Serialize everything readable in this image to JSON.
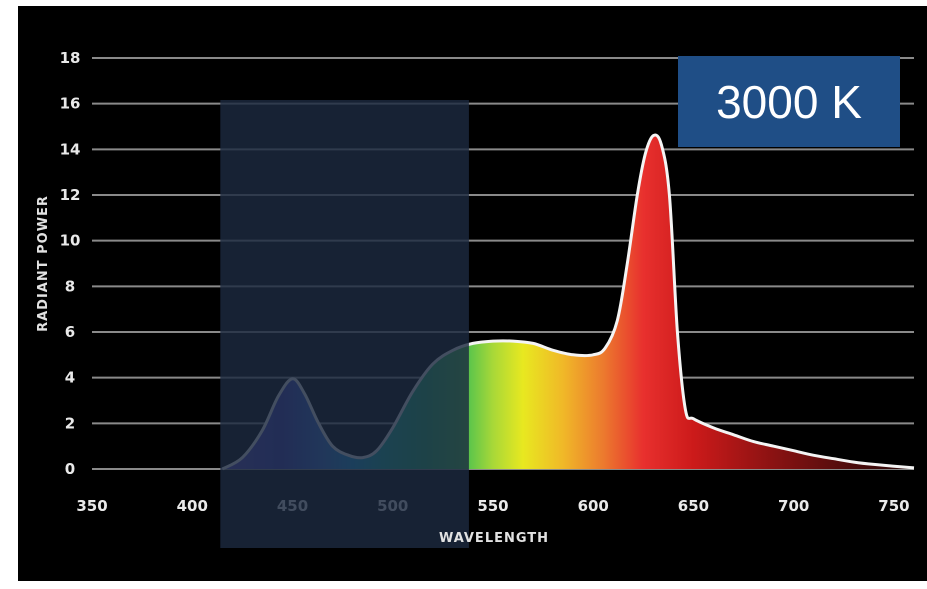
{
  "chart_data": {
    "type": "area",
    "title": "",
    "xlabel": "WAVELENGTH",
    "ylabel": "RADIANT POWER",
    "xlim": [
      350,
      760
    ],
    "ylim": [
      0,
      18
    ],
    "x_ticks": [
      350,
      400,
      450,
      500,
      550,
      600,
      650,
      700,
      750
    ],
    "y_ticks": [
      0,
      2,
      4,
      6,
      8,
      10,
      12,
      14,
      16,
      18
    ],
    "grid": true,
    "series": [
      {
        "x": [
          415,
          425,
          435,
          443,
          450,
          456,
          463,
          470,
          478,
          485,
          492,
          500,
          510,
          520,
          530,
          540,
          550,
          560,
          570,
          580,
          590,
          600,
          606,
          612,
          617,
          622,
          626,
          630,
          634,
          638,
          642,
          646,
          650,
          660,
          670,
          680,
          690,
          700,
          710,
          720,
          730,
          740,
          760
        ],
        "y": [
          0.0,
          0.5,
          1.7,
          3.2,
          3.95,
          3.3,
          2.0,
          1.0,
          0.6,
          0.5,
          0.8,
          1.8,
          3.4,
          4.6,
          5.2,
          5.5,
          5.6,
          5.6,
          5.5,
          5.2,
          5.0,
          5.0,
          5.3,
          6.5,
          9.0,
          12.0,
          13.8,
          14.6,
          14.2,
          12.0,
          6.0,
          2.6,
          2.2,
          1.8,
          1.5,
          1.2,
          1.0,
          0.8,
          0.6,
          0.45,
          0.3,
          0.2,
          0.05
        ]
      }
    ],
    "highlight": {
      "x_range": [
        414,
        538
      ],
      "color": "#1c2a40"
    },
    "badge": "3000 K"
  }
}
